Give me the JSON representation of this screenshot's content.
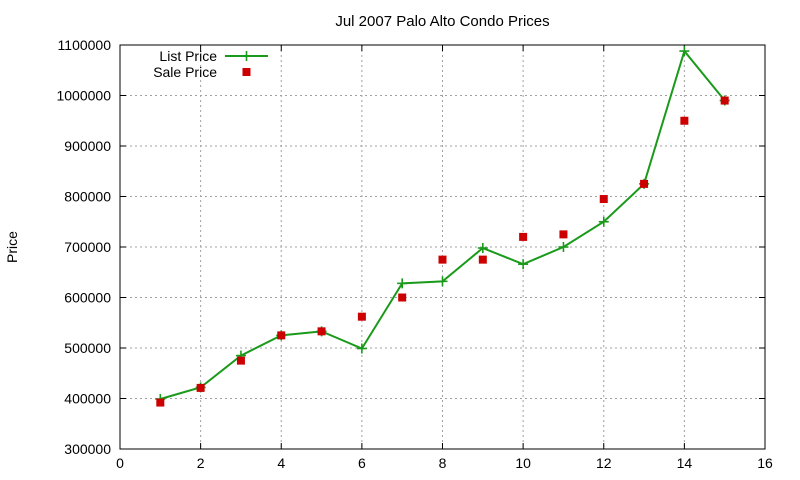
{
  "chart_data": {
    "type": "line",
    "title": "Jul 2007 Palo Alto Condo Prices",
    "xlabel": "",
    "ylabel": "Price",
    "xlim": [
      0,
      16
    ],
    "ylim": [
      300000,
      1100000
    ],
    "xticks": [
      0,
      2,
      4,
      6,
      8,
      10,
      12,
      14,
      16
    ],
    "yticks": [
      300000,
      400000,
      500000,
      600000,
      700000,
      800000,
      900000,
      1000000,
      1100000
    ],
    "grid": true,
    "legend_position": "top-left",
    "series": [
      {
        "name": "List Price",
        "kind": "line",
        "marker": "plus",
        "color": "#1a9a1a",
        "x": [
          1,
          2,
          3,
          4,
          5,
          6,
          7,
          8,
          9,
          10,
          11,
          12,
          13,
          14,
          15
        ],
        "y": [
          399000,
          422000,
          485000,
          525000,
          533000,
          499000,
          628000,
          632000,
          698000,
          666000,
          700000,
          750000,
          825000,
          1088000,
          990000
        ]
      },
      {
        "name": "Sale Price",
        "kind": "scatter",
        "marker": "square",
        "color": "#cc0000",
        "x": [
          1,
          2,
          3,
          4,
          5,
          6,
          7,
          8,
          9,
          10,
          11,
          12,
          13,
          14,
          15
        ],
        "y": [
          392000,
          421000,
          475000,
          525000,
          533000,
          562000,
          600000,
          675000,
          675000,
          720000,
          725000,
          795000,
          825000,
          950000,
          990000
        ]
      }
    ]
  }
}
